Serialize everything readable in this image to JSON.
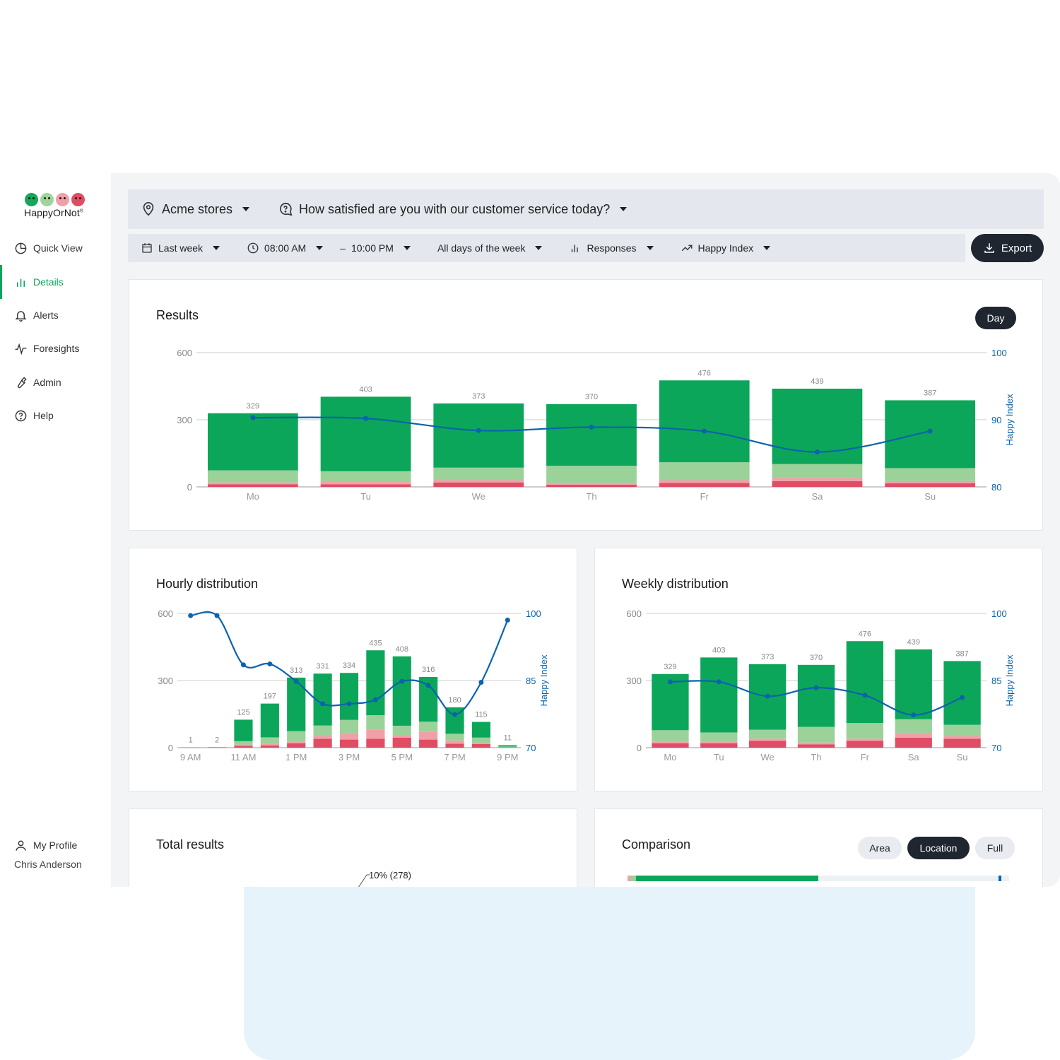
{
  "brand": {
    "name": "HappyOrNot",
    "mark": "®",
    "face_colors": [
      "#14a85b",
      "#9fd49a",
      "#f2a0a8",
      "#e04c64"
    ]
  },
  "nav": {
    "items": [
      {
        "label": "Quick View",
        "icon": "pie-chart-icon"
      },
      {
        "label": "Details",
        "icon": "bar-chart-icon",
        "active": true
      },
      {
        "label": "Alerts",
        "icon": "bell-icon"
      },
      {
        "label": "Foresights",
        "icon": "pulse-icon"
      },
      {
        "label": "Admin",
        "icon": "wrench-icon"
      },
      {
        "label": "Help",
        "icon": "help-icon"
      }
    ],
    "profile_label": "My Profile",
    "profile_name": "Chris Anderson"
  },
  "topbar": {
    "location": "Acme stores",
    "question": "How satisfied are you with our customer service today?"
  },
  "filters": {
    "period": "Last week",
    "time_from": "08:00 AM",
    "time_separator": "–",
    "time_to": "10:00 PM",
    "days": "All days of the week",
    "metric": "Responses",
    "index": "Happy Index",
    "export_label": "Export"
  },
  "results": {
    "title": "Results",
    "toggle_label": "Day"
  },
  "hourly": {
    "title": "Hourly distribution"
  },
  "weekly": {
    "title": "Weekly distribution"
  },
  "total": {
    "title": "Total results",
    "slice_label": "10% (278)"
  },
  "comparison": {
    "title": "Comparison",
    "toggles": [
      "Area",
      "Location",
      "Full"
    ],
    "selected": "Location"
  },
  "colors": {
    "very_happy": "#0ca65a",
    "happy": "#9bd29a",
    "unhappy": "#f2a0a8",
    "very_unhappy": "#e04c64",
    "index_line": "#0a63ad"
  },
  "chart_data": [
    {
      "id": "results",
      "type": "bar",
      "stacked": true,
      "title": "Results",
      "categories": [
        "Mo",
        "Tu",
        "We",
        "Th",
        "Fr",
        "Sa",
        "Su"
      ],
      "totals": [
        329,
        403,
        373,
        370,
        476,
        439,
        387
      ],
      "series": [
        {
          "values": [
            12,
            12,
            20,
            10,
            18,
            26,
            16
          ]
        },
        {
          "values": [
            8,
            10,
            10,
            8,
            12,
            14,
            10
          ]
        },
        {
          "values": [
            54,
            48,
            56,
            76,
            80,
            62,
            58
          ]
        },
        {
          "values": [
            255,
            333,
            287,
            276,
            366,
            337,
            303
          ]
        }
      ],
      "line": {
        "name": "Happy Index",
        "values": [
          90.3,
          90.2,
          88.4,
          88.9,
          88.3,
          85.2,
          88.3
        ]
      },
      "ylim": [
        0,
        600
      ],
      "yticks": [
        0,
        300,
        600
      ],
      "y2label": "Happy Index",
      "y2lim": [
        80,
        100
      ],
      "y2ticks": [
        80,
        90,
        100
      ],
      "grid": true
    },
    {
      "id": "hourly",
      "type": "bar",
      "stacked": true,
      "title": "Hourly distribution",
      "categories": [
        "9 AM",
        "10 AM",
        "11 AM",
        "12 PM",
        "1 PM",
        "2 PM",
        "3 PM",
        "4 PM",
        "5 PM",
        "6 PM",
        "7 PM",
        "8 PM",
        "9 PM"
      ],
      "tick_labels": [
        "9 AM",
        "",
        "11 AM",
        "",
        "1 PM",
        "",
        "3 PM",
        "",
        "5 PM",
        "",
        "7 PM",
        "",
        "9 PM"
      ],
      "totals": [
        1,
        2,
        125,
        197,
        313,
        331,
        334,
        435,
        408,
        316,
        180,
        115,
        11
      ],
      "series": [
        {
          "values": [
            0,
            0,
            8,
            10,
            20,
            40,
            36,
            40,
            45,
            36,
            18,
            16,
            2
          ]
        },
        {
          "values": [
            0,
            0,
            6,
            6,
            8,
            12,
            30,
            40,
            8,
            34,
            14,
            6,
            1
          ]
        },
        {
          "values": [
            0,
            0,
            15,
            30,
            46,
            47,
            58,
            65,
            45,
            46,
            30,
            23,
            2
          ]
        },
        {
          "values": [
            1,
            2,
            96,
            151,
            239,
            232,
            210,
            290,
            310,
            200,
            118,
            70,
            6
          ]
        }
      ],
      "line": {
        "name": "Happy Index",
        "values": [
          99.5,
          99.5,
          88.5,
          88.7,
          84.8,
          79.8,
          79.8,
          80.7,
          84.8,
          83.9,
          77.4,
          84.6,
          98.5
        ]
      },
      "ylim": [
        0,
        600
      ],
      "yticks": [
        0,
        300,
        600
      ],
      "y2label": "Happy Index",
      "y2lim": [
        70,
        100
      ],
      "y2ticks": [
        70,
        85,
        100
      ],
      "grid": true
    },
    {
      "id": "weekly",
      "type": "bar",
      "stacked": true,
      "title": "Weekly distribution",
      "categories": [
        "Mo",
        "Tu",
        "We",
        "Th",
        "Fr",
        "Sa",
        "Su"
      ],
      "totals": [
        329,
        403,
        373,
        370,
        476,
        439,
        387
      ],
      "series": [
        {
          "values": [
            20,
            20,
            30,
            15,
            30,
            45,
            40
          ]
        },
        {
          "values": [
            8,
            8,
            10,
            8,
            10,
            20,
            12
          ]
        },
        {
          "values": [
            50,
            40,
            40,
            70,
            70,
            62,
            50
          ]
        },
        {
          "values": [
            251,
            335,
            293,
            277,
            366,
            312,
            285
          ]
        }
      ],
      "line": {
        "name": "Happy Index",
        "values": [
          84.7,
          84.7,
          81.5,
          83.4,
          81.7,
          77.3,
          81.2
        ]
      },
      "ylim": [
        0,
        600
      ],
      "yticks": [
        0,
        300,
        600
      ],
      "y2label": "Happy Index",
      "y2lim": [
        70,
        100
      ],
      "y2ticks": [
        70,
        85,
        100
      ],
      "grid": true
    }
  ]
}
